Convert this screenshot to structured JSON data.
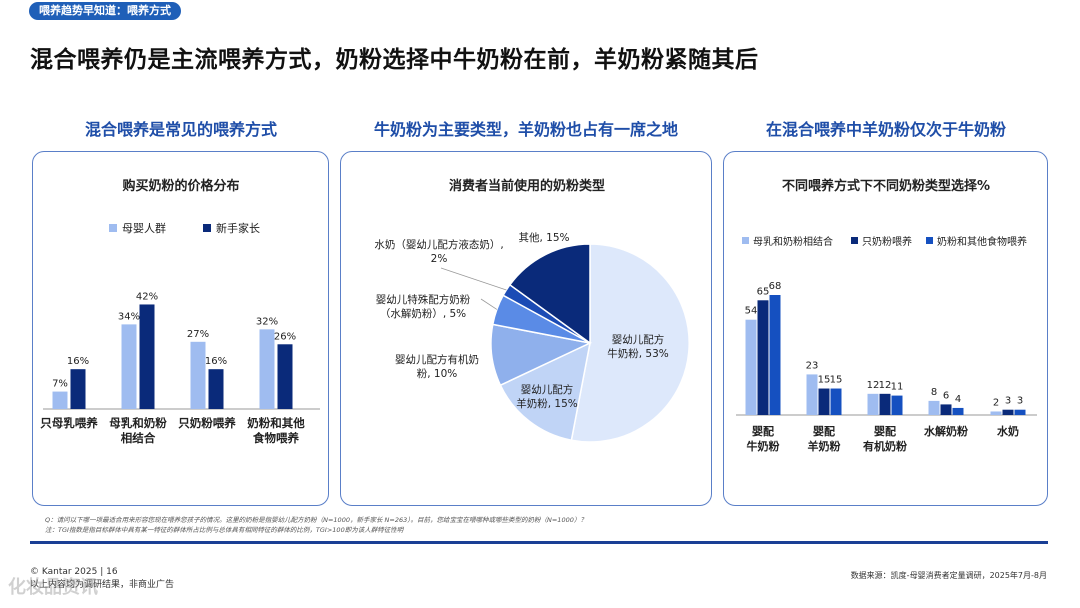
{
  "header": {
    "tag": "喂养趋势早知道：喂养方式",
    "title": "混合喂养仍是主流喂养方式，奶粉选择中牛奶粉在前，羊奶粉紧随其后"
  },
  "sections": [
    {
      "heading": "混合喂养是常见的喂养方式"
    },
    {
      "heading": "牛奶粉为主要类型，羊奶粉也占有一席之地"
    },
    {
      "heading": "在混合喂养中羊奶粉仅次于牛奶粉"
    }
  ],
  "colors": {
    "light": "#9fbcf0",
    "dark": "#0a2a7a",
    "mid": "#1550c0",
    "pie_lightest": "#dde8fb",
    "pie_light2": "#c0d4f6",
    "pie_light3": "#8fb0ec",
    "pie_mid": "#5a8be6",
    "pie_deep": "#1b4bb5",
    "pie_navy": "#0a2a7a"
  },
  "chart_data": [
    {
      "type": "bar",
      "title": "购买奶粉的价格分布",
      "categories": [
        [
          "只母乳喂养"
        ],
        [
          "母乳和奶粉",
          "相结合"
        ],
        [
          "只奶粉喂养"
        ],
        [
          "奶粉和其他",
          "食物喂养"
        ]
      ],
      "series": [
        {
          "name": "母婴人群",
          "values": [
            7,
            34,
            27,
            32
          ],
          "labels": [
            "7%",
            "34%",
            "27%",
            "32%"
          ]
        },
        {
          "name": "新手家长",
          "values": [
            16,
            42,
            16,
            26
          ],
          "labels": [
            "16%",
            "42%",
            "16%",
            "26%"
          ]
        }
      ],
      "ylim": [
        0,
        45
      ]
    },
    {
      "type": "pie",
      "title": "消费者当前使用的奶粉类型",
      "slices": [
        {
          "name": "婴幼儿配方牛奶粉",
          "value": 53,
          "label": [
            "婴幼儿配方",
            "牛奶粉, 53%"
          ]
        },
        {
          "name": "婴幼儿配方羊奶粉",
          "value": 15,
          "label": [
            "婴幼儿配方",
            "羊奶粉, 15%"
          ]
        },
        {
          "name": "婴幼儿配方有机奶粉",
          "value": 10,
          "label": [
            "婴幼儿配方有机奶",
            "粉, 10%"
          ]
        },
        {
          "name": "婴幼儿特殊配方奶粉（水解奶粉）",
          "value": 5,
          "label": [
            "婴幼儿特殊配方奶粉",
            "（水解奶粉）, 5%"
          ]
        },
        {
          "name": "水奶（婴幼儿配方液态奶）",
          "value": 2,
          "label": [
            "水奶（婴幼儿配方液态奶）,",
            "2%"
          ]
        },
        {
          "name": "其他",
          "value": 15,
          "label": [
            "其他, 15%"
          ]
        }
      ]
    },
    {
      "type": "bar",
      "title": "不同喂养方式下不同奶粉类型选择%",
      "categories": [
        [
          "婴配",
          "牛奶粉"
        ],
        [
          "婴配",
          "羊奶粉"
        ],
        [
          "婴配",
          "有机奶粉"
        ],
        [
          "水解奶粉"
        ],
        [
          "水奶"
        ]
      ],
      "series": [
        {
          "name": "母乳和奶粉相结合",
          "values": [
            54,
            23,
            12,
            8,
            2
          ]
        },
        {
          "name": "只奶粉喂养",
          "values": [
            65,
            15,
            12,
            6,
            3
          ]
        },
        {
          "name": "奶粉和其他食物喂养",
          "values": [
            68,
            15,
            11,
            4,
            3
          ]
        }
      ],
      "ylim": [
        0,
        75
      ]
    }
  ],
  "notes": [
    "Q：请问以下哪一项最适合用来形容您现在喂养您孩子的情况。这里的奶粉是指婴幼儿配方奶粉（N=1000，新手家长 N=263）。目前，您给宝宝在喂哪种或哪些类型的奶粉（N=1000）？",
    "注：TGI指数是指目标群体中具有某一特征的群体所占比例与总体具有相同特征的群体的比例，TGI>100即为该人群特征性明"
  ],
  "footer": {
    "copyright": "© Kantar 2025 | 16",
    "sub": "以上内容均为调研结果，非商业广告",
    "source": "数据来源：凯度-母婴消费者定量调研，2025年7月-8月",
    "watermark": "化妆品资讯"
  }
}
